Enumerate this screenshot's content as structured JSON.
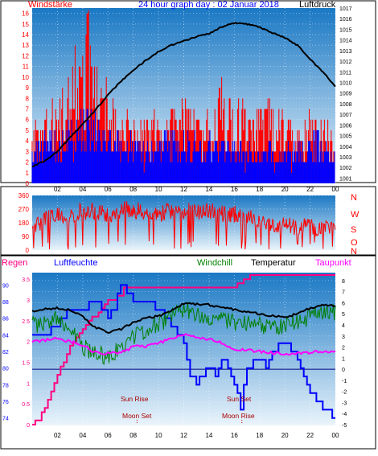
{
  "colors": {
    "wind_gust": "#ff0000",
    "wind_avg": "#0000ff",
    "pressure": "#000000",
    "direction": "#ff0000",
    "rain": "#ff0080",
    "humidity": "#0000ff",
    "windchill": "#008000",
    "temperature": "#000000",
    "dewpoint": "#ff00ff",
    "label_red": "#ff0000",
    "label_blue": "#0000ff",
    "label_green": "#008000",
    "label_magenta": "#ff00ff",
    "sun_label": "#aa0000",
    "plot_top": "#1a78c4",
    "plot_bottom": "#eaf4fb"
  },
  "chart_data": [
    {
      "type": "bar",
      "title": "24 hour graph day : 02 Januar 2018",
      "left_label": "Windstärke",
      "right_label": "Luftdruck",
      "x_ticks": [
        "02",
        "04",
        "06",
        "08",
        "10",
        "12",
        "14",
        "16",
        "18",
        "20",
        "22",
        "00"
      ],
      "y_left_ticks": [
        "0",
        "1",
        "2",
        "3",
        "4",
        "5",
        "6",
        "7",
        "8",
        "9",
        "10",
        "11",
        "12",
        "13",
        "14",
        "15",
        "16"
      ],
      "y_left_range": [
        0,
        16.5
      ],
      "y_right_ticks": [
        "1001",
        "1002",
        "1003",
        "1004",
        "1005",
        "1006",
        "1007",
        "1008",
        "1009",
        "1010",
        "1011",
        "1012",
        "1013",
        "1014",
        "1015",
        "1016",
        "1017"
      ],
      "y_right_range": [
        1000.5,
        1017
      ],
      "series": [
        {
          "key": "gust",
          "hours": [
            0,
            1,
            2,
            3,
            3.5,
            4,
            4.5,
            5,
            6,
            7,
            8,
            9,
            10,
            11,
            12,
            13,
            14,
            15,
            16,
            17,
            18,
            19,
            20,
            21,
            22,
            23,
            24
          ],
          "values": [
            5,
            6,
            7,
            9,
            11,
            12,
            16,
            10,
            8,
            6,
            6,
            5,
            6,
            6,
            7,
            6,
            6,
            8,
            7,
            7,
            6,
            7,
            6,
            5,
            6,
            6,
            5
          ]
        },
        {
          "key": "average",
          "hours": [
            0,
            1,
            2,
            3,
            4,
            5,
            6,
            7,
            8,
            9,
            10,
            11,
            12,
            13,
            14,
            15,
            16,
            17,
            18,
            19,
            20,
            21,
            22,
            23,
            24
          ],
          "values": [
            3,
            4,
            4,
            5,
            6,
            6,
            4,
            4,
            4,
            3,
            4,
            4,
            4,
            4,
            4,
            4,
            4,
            3,
            3,
            3,
            3,
            3,
            4,
            4,
            3
          ]
        },
        {
          "key": "pressure",
          "hours": [
            0,
            1,
            2,
            3,
            4,
            5,
            6,
            7,
            8,
            9,
            10,
            11,
            12,
            13,
            14,
            15,
            16,
            17,
            18,
            19,
            20,
            21,
            22,
            23,
            24
          ],
          "values": [
            1002.1,
            1002.6,
            1003.5,
            1004.8,
            1006.1,
            1007.4,
            1008.8,
            1010.1,
            1011.1,
            1012.1,
            1012.9,
            1013.5,
            1013.9,
            1014.3,
            1014.6,
            1015.2,
            1015.6,
            1015.5,
            1015.2,
            1014.7,
            1014.2,
            1013.5,
            1012.2,
            1011.0,
            1009.6
          ]
        }
      ]
    },
    {
      "type": "line",
      "y_ticks": [
        "0",
        "90",
        "180",
        "270",
        "360"
      ],
      "y_range": [
        0,
        360
      ],
      "compass_labels": [
        "N",
        "W",
        "S",
        "O",
        "N"
      ],
      "series": [
        {
          "key": "direction",
          "hours": [
            0,
            1,
            2,
            3,
            4,
            5,
            6,
            7,
            8,
            9,
            10,
            11,
            12,
            13,
            14,
            15,
            16,
            17,
            18,
            19,
            20,
            21,
            22,
            23,
            24
          ],
          "values": [
            150,
            210,
            230,
            240,
            250,
            255,
            230,
            260,
            265,
            250,
            250,
            245,
            255,
            250,
            250,
            245,
            240,
            235,
            190,
            175,
            160,
            155,
            145,
            140,
            130
          ]
        }
      ]
    },
    {
      "type": "line",
      "labels": {
        "rain": "Regen",
        "humidity": "Luftfeuchte",
        "windchill": "Windchill",
        "temperature": "Temperatur",
        "dewpoint": "Taupunkt"
      },
      "x_ticks": [
        "02",
        "04",
        "06",
        "08",
        "10",
        "12",
        "14",
        "16",
        "18",
        "20",
        "22",
        "00"
      ],
      "y_humidity_ticks": [
        "74",
        "76",
        "78",
        "80",
        "82",
        "84",
        "86",
        "88",
        "90"
      ],
      "y_humidity_range": [
        73.2,
        91.2
      ],
      "y_rain_ticks": [
        "0",
        "0.5",
        "1",
        "1.5",
        "2",
        "2.5",
        "3",
        "3.5"
      ],
      "y_rain_range": [
        0,
        3.6
      ],
      "y_temp_ticks": [
        "-5",
        "-4",
        "-3",
        "-2",
        "-1",
        "0",
        "1",
        "2",
        "3",
        "4",
        "5",
        "6",
        "7",
        "8"
      ],
      "y_temp_range": [
        -5,
        8.5
      ],
      "sun_rise": {
        "label": "Sun Rise",
        "hour": 8.3
      },
      "sun_set": {
        "label": "Sun Set",
        "hour": 16.6
      },
      "moon_set": {
        "label": "Moon Set",
        "hour": 8.3
      },
      "moon_rise": {
        "label": "Moon Rise",
        "hour": 16.6
      },
      "series": [
        {
          "key": "rain",
          "hours": [
            0,
            0.5,
            1,
            1.5,
            2,
            2.5,
            3,
            3.5,
            4,
            4.5,
            5,
            5.5,
            6,
            6.5,
            7,
            7.3,
            8,
            10,
            12,
            14,
            16,
            17.4,
            18,
            20,
            22,
            24
          ],
          "values": [
            0.0,
            0.1,
            0.4,
            0.8,
            1.2,
            1.5,
            1.9,
            2.1,
            2.3,
            2.5,
            2.6,
            2.8,
            3.0,
            3.0,
            3.1,
            3.3,
            3.3,
            3.3,
            3.3,
            3.3,
            3.3,
            3.6,
            3.6,
            3.6,
            3.6,
            3.6
          ]
        },
        {
          "key": "humidity",
          "hours": [
            0,
            1,
            2,
            3,
            4,
            5,
            6,
            6.5,
            7,
            8,
            9,
            10,
            11,
            12,
            12.5,
            13,
            14,
            14.5,
            15,
            15.5,
            16,
            16.5,
            17,
            18,
            18.5,
            19,
            20,
            21,
            22,
            23,
            24
          ],
          "values": [
            84,
            84,
            85,
            87,
            87,
            88,
            86,
            87,
            90,
            88,
            88,
            87,
            85,
            83,
            79,
            78,
            80,
            79,
            81,
            80,
            78,
            75,
            80,
            81,
            80,
            82,
            83,
            81,
            77,
            75,
            74
          ]
        },
        {
          "key": "temperature",
          "hours": [
            0,
            1,
            2,
            3,
            4,
            5,
            6,
            7,
            8,
            9,
            10,
            11,
            12,
            13,
            14,
            15,
            16,
            17,
            18,
            19,
            20,
            21,
            22,
            23,
            24
          ],
          "values": [
            5.2,
            5.4,
            5.5,
            5.4,
            4.7,
            3.8,
            3.3,
            3.6,
            4.2,
            4.6,
            4.8,
            5.3,
            5.9,
            5.9,
            5.8,
            5.6,
            5.4,
            5.2,
            5.0,
            4.8,
            4.7,
            5.0,
            5.5,
            5.8,
            5.7
          ]
        },
        {
          "key": "windchill",
          "hours": [
            0,
            1,
            2,
            3,
            4,
            5,
            6,
            7,
            8,
            9,
            10,
            11,
            12,
            13,
            14,
            15,
            16,
            17,
            18,
            19,
            20,
            21,
            22,
            23,
            24
          ],
          "values": [
            4.0,
            4.2,
            4.5,
            4.0,
            2.0,
            1.5,
            1.0,
            2.0,
            3.0,
            3.5,
            4.0,
            4.8,
            5.5,
            5.0,
            4.8,
            4.5,
            4.2,
            4.0,
            4.0,
            3.8,
            4.0,
            4.2,
            4.8,
            5.0,
            5.2
          ]
        },
        {
          "key": "dewpoint",
          "hours": [
            0,
            1,
            2,
            3,
            4,
            5,
            6,
            7,
            8,
            9,
            10,
            11,
            12,
            13,
            14,
            15,
            16,
            17,
            18,
            19,
            20,
            21,
            22,
            23,
            24
          ],
          "values": [
            2.5,
            2.6,
            2.8,
            2.5,
            2.2,
            1.5,
            1.4,
            1.5,
            2.0,
            2.1,
            2.4,
            2.7,
            3.1,
            2.9,
            2.7,
            2.4,
            1.8,
            1.7,
            1.6,
            1.5,
            1.4,
            1.4,
            1.5,
            1.6,
            1.6
          ]
        }
      ]
    }
  ]
}
